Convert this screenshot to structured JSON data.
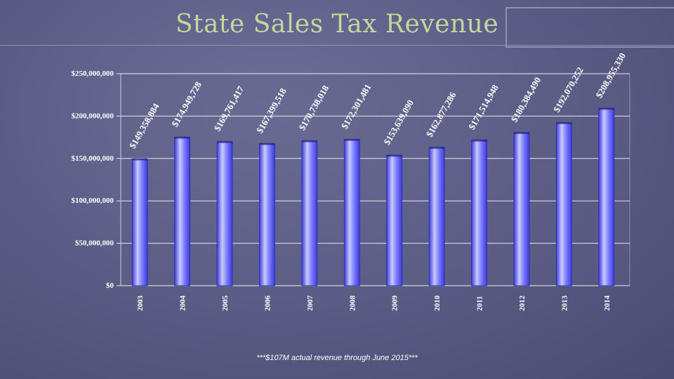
{
  "title": "State Sales Tax Revenue",
  "footnote": "***$107M actual revenue through June 2015***",
  "colors": {
    "title": "#c6d69a",
    "bar_light": "#c9c9ff",
    "bar_mid": "#7a7aff",
    "bar_dark": "#3a3ad8",
    "plot_bg": "#5f6088",
    "grid": "#ffffff",
    "text": "#ffffff"
  },
  "chart_data": {
    "type": "bar",
    "title": "State Sales Tax Revenue",
    "xlabel": "",
    "ylabel": "",
    "ylim": [
      0,
      250000000
    ],
    "y_ticks": [
      0,
      50000000,
      100000000,
      150000000,
      200000000,
      250000000
    ],
    "y_tick_labels": [
      "$0",
      "$50,000,000",
      "$100,000,000",
      "$150,000,000",
      "$200,000,000",
      "$250,000,000"
    ],
    "categories": [
      "2003",
      "2004",
      "2005",
      "2006",
      "2007",
      "2008",
      "2009",
      "2010",
      "2011",
      "2012",
      "2013",
      "2014"
    ],
    "values": [
      149358884,
      174949728,
      169761417,
      167399518,
      170738018,
      172301481,
      153639090,
      162877286,
      171514948,
      180384490,
      192070252,
      208955330
    ],
    "data_labels": [
      "$149,358,884",
      "$174,949,728",
      "$169,761,417",
      "$167,399,518",
      "$170,738,018",
      "$172,301,481",
      "$153,639,090",
      "$162,877,286",
      "$171,514,948",
      "$180,384,490",
      "$192,070,252",
      "$208,955,330"
    ],
    "grid": true
  }
}
